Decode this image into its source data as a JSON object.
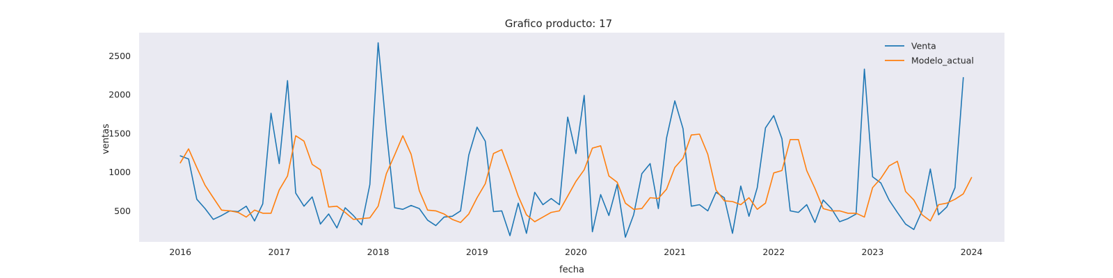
{
  "chart_data": {
    "type": "line",
    "title": "Grafico producto: 17",
    "xlabel": "fecha",
    "ylabel": "ventas",
    "x_start": "2016-01",
    "x_frequency": "monthly",
    "xlim": [
      "2015-08",
      "2024-05"
    ],
    "ylim": [
      100,
      2800
    ],
    "xticks": [
      "2016",
      "2017",
      "2018",
      "2019",
      "2020",
      "2021",
      "2022",
      "2023",
      "2024"
    ],
    "yticks": [
      500,
      1000,
      1500,
      2000,
      2500
    ],
    "grid": false,
    "legend_position": "top-right",
    "series": [
      {
        "name": "Venta",
        "color": "#1f77b4",
        "values": [
          1210,
          1170,
          650,
          530,
          390,
          440,
          500,
          490,
          560,
          370,
          590,
          1760,
          1110,
          2180,
          730,
          560,
          680,
          330,
          460,
          280,
          540,
          440,
          320,
          840,
          2670,
          1540,
          540,
          520,
          570,
          530,
          380,
          310,
          420,
          430,
          500,
          1220,
          1580,
          1400,
          490,
          500,
          180,
          600,
          210,
          740,
          580,
          660,
          580,
          1710,
          1240,
          1990,
          230,
          710,
          440,
          840,
          160,
          450,
          980,
          1110,
          530,
          1440,
          1920,
          1560,
          560,
          580,
          500,
          740,
          670,
          210,
          820,
          430,
          800,
          1570,
          1730,
          1430,
          500,
          480,
          580,
          350,
          640,
          530,
          360,
          400,
          460,
          2330,
          940,
          860,
          640,
          480,
          330,
          260,
          500,
          1040,
          450,
          550,
          800,
          2220
        ]
      },
      {
        "name": "Modelo_actual",
        "color": "#ff7f0e",
        "values": [
          1120,
          1300,
          1060,
          830,
          670,
          510,
          500,
          480,
          420,
          510,
          470,
          470,
          770,
          950,
          1470,
          1400,
          1100,
          1030,
          550,
          560,
          480,
          390,
          400,
          410,
          560,
          980,
          1220,
          1470,
          1230,
          760,
          510,
          500,
          460,
          390,
          350,
          460,
          670,
          850,
          1240,
          1290,
          1000,
          690,
          450,
          360,
          420,
          480,
          500,
          690,
          880,
          1030,
          1310,
          1340,
          950,
          870,
          600,
          520,
          530,
          670,
          660,
          780,
          1060,
          1180,
          1480,
          1490,
          1230,
          770,
          630,
          620,
          580,
          670,
          520,
          600,
          990,
          1020,
          1420,
          1420,
          1020,
          790,
          530,
          500,
          500,
          470,
          470,
          420,
          800,
          920,
          1080,
          1140,
          750,
          640,
          450,
          370,
          580,
          600,
          650,
          720,
          930
        ]
      }
    ]
  }
}
